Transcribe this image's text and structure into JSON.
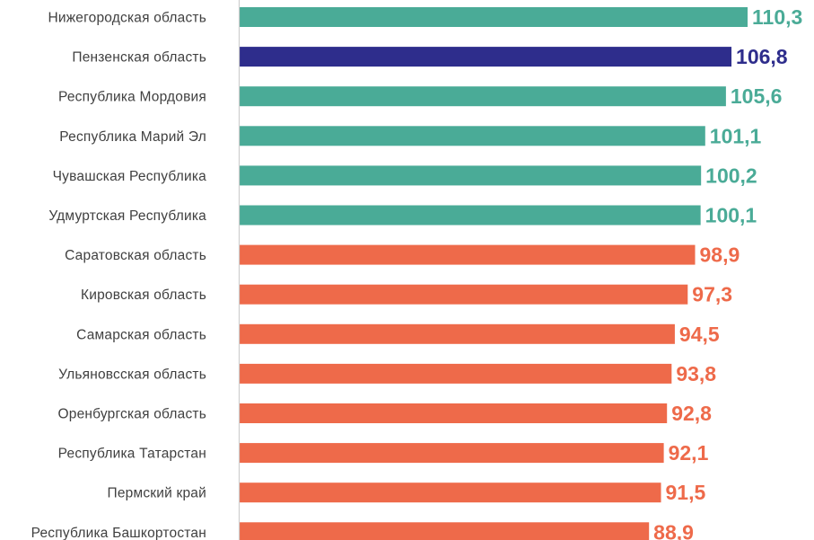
{
  "chart_data": {
    "type": "bar",
    "orientation": "horizontal",
    "categories": [
      "Нижегородская область",
      "Пензенская область",
      "Республика Мордовия",
      "Республика Марий Эл",
      "Чувашская Республика",
      "Удмуртская Республика",
      "Саратовская область",
      "Кировская область",
      "Самарская область",
      "Ульяновсская область",
      "Оренбургская область",
      "Республика Татарстан",
      "Пермский край",
      "Республика Башкортостан"
    ],
    "values": [
      110.3,
      106.8,
      105.6,
      101.1,
      100.2,
      100.1,
      98.9,
      97.3,
      94.5,
      93.8,
      92.8,
      92.1,
      91.5,
      88.9
    ],
    "value_labels": [
      "110,3",
      "106,8",
      "105,6",
      "101,1",
      "100,2",
      "100,1",
      "98,9",
      "97,3",
      "94,5",
      "93,8",
      "92,8",
      "92,1",
      "91,5",
      "88,9"
    ],
    "bar_groups": [
      "above",
      "highlight",
      "above",
      "above",
      "above",
      "above",
      "below",
      "below",
      "below",
      "below",
      "below",
      "below",
      "below",
      "below"
    ],
    "colors": {
      "above": "#4aab97",
      "highlight": "#2e2d8c",
      "below": "#ee6a4a"
    },
    "title": "",
    "xlabel": "",
    "ylabel": "",
    "xlim": [
      0,
      110.3
    ],
    "grid": false,
    "legend": "none"
  }
}
